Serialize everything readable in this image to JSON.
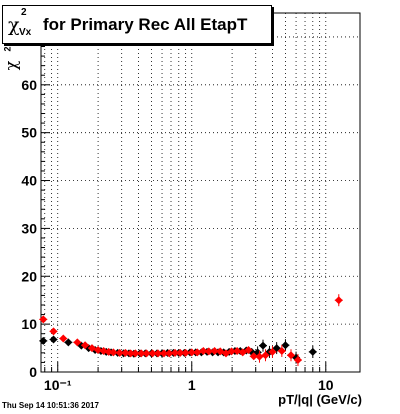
{
  "title": {
    "symbol": "χ",
    "superscript": "2",
    "subscript": "Vx",
    "text": "for Primary Rec All EtapT"
  },
  "y_axis_label": {
    "symbol": "χ",
    "superscript": "2"
  },
  "x_axis_label": "pT/|q| (GeV/c)",
  "timestamp": "Thu Sep 14 10:51:36 2017",
  "chart_data": {
    "type": "scatter",
    "xlabel": "pT/|q| (GeV/c)",
    "ylabel": "χ2",
    "x_scale": "log",
    "xlim": [
      0.075,
      18
    ],
    "ylim": [
      0,
      75
    ],
    "grid": true,
    "x_ticks": [
      0.1,
      1,
      10
    ],
    "x_tick_labels": [
      "10⁻¹",
      "1",
      "10"
    ],
    "y_ticks": [
      0,
      10,
      20,
      30,
      40,
      50,
      60
    ],
    "colors": {
      "black_series": "#000000",
      "red_series": "#ff0000"
    },
    "series": [
      {
        "color": "black",
        "points": [
          [
            0.078,
            6.5
          ],
          [
            0.093,
            6.8
          ],
          [
            0.12,
            6.2
          ],
          [
            0.15,
            5.5
          ],
          [
            0.17,
            5.0
          ],
          [
            0.19,
            4.6
          ],
          [
            0.21,
            4.4
          ],
          [
            0.23,
            4.2
          ],
          [
            0.25,
            4.1
          ],
          [
            0.28,
            4.0
          ],
          [
            0.31,
            3.9
          ],
          [
            0.34,
            3.9
          ],
          [
            0.37,
            3.8
          ],
          [
            0.41,
            3.9
          ],
          [
            0.45,
            3.9
          ],
          [
            0.5,
            3.9
          ],
          [
            0.55,
            3.9
          ],
          [
            0.6,
            3.9
          ],
          [
            0.66,
            4.0
          ],
          [
            0.73,
            4.0
          ],
          [
            0.8,
            4.0
          ],
          [
            0.88,
            4.0
          ],
          [
            0.97,
            4.1
          ],
          [
            1.07,
            4.1
          ],
          [
            1.18,
            4.1
          ],
          [
            1.3,
            4.2
          ],
          [
            1.43,
            4.1
          ],
          [
            1.57,
            4.1
          ],
          [
            1.73,
            4.1
          ],
          [
            1.9,
            4.2
          ],
          [
            2.1,
            4.4
          ],
          [
            2.3,
            4.4
          ],
          [
            2.55,
            4.5
          ],
          [
            2.8,
            4.2
          ],
          [
            3.1,
            4.1
          ],
          [
            3.4,
            5.5
          ],
          [
            3.8,
            4.2
          ],
          [
            4.3,
            5.0
          ],
          [
            5.0,
            5.6
          ],
          [
            6.0,
            3.0
          ],
          [
            8.0,
            4.2
          ]
        ]
      },
      {
        "color": "red",
        "points": [
          [
            0.078,
            11.0
          ],
          [
            0.093,
            8.5
          ],
          [
            0.11,
            7.0
          ],
          [
            0.14,
            6.2
          ],
          [
            0.16,
            5.6
          ],
          [
            0.18,
            5.0
          ],
          [
            0.2,
            4.6
          ],
          [
            0.22,
            4.4
          ],
          [
            0.24,
            4.2
          ],
          [
            0.26,
            4.1
          ],
          [
            0.29,
            4.0
          ],
          [
            0.32,
            4.0
          ],
          [
            0.35,
            3.9
          ],
          [
            0.38,
            3.9
          ],
          [
            0.42,
            3.9
          ],
          [
            0.46,
            3.9
          ],
          [
            0.51,
            3.9
          ],
          [
            0.56,
            3.9
          ],
          [
            0.62,
            3.9
          ],
          [
            0.68,
            3.9
          ],
          [
            0.75,
            4.0
          ],
          [
            0.82,
            4.0
          ],
          [
            0.9,
            4.0
          ],
          [
            1.0,
            4.1
          ],
          [
            1.1,
            4.1
          ],
          [
            1.22,
            4.4
          ],
          [
            1.34,
            4.3
          ],
          [
            1.48,
            4.4
          ],
          [
            1.63,
            4.3
          ],
          [
            1.8,
            3.9
          ],
          [
            1.98,
            4.3
          ],
          [
            2.18,
            4.4
          ],
          [
            2.4,
            4.1
          ],
          [
            2.65,
            4.6
          ],
          [
            2.9,
            3.3
          ],
          [
            3.2,
            3.2
          ],
          [
            3.55,
            3.5
          ],
          [
            4.0,
            4.2
          ],
          [
            4.7,
            4.4
          ],
          [
            5.5,
            3.5
          ],
          [
            6.2,
            2.5
          ],
          [
            12.5,
            15.0
          ]
        ]
      }
    ]
  }
}
